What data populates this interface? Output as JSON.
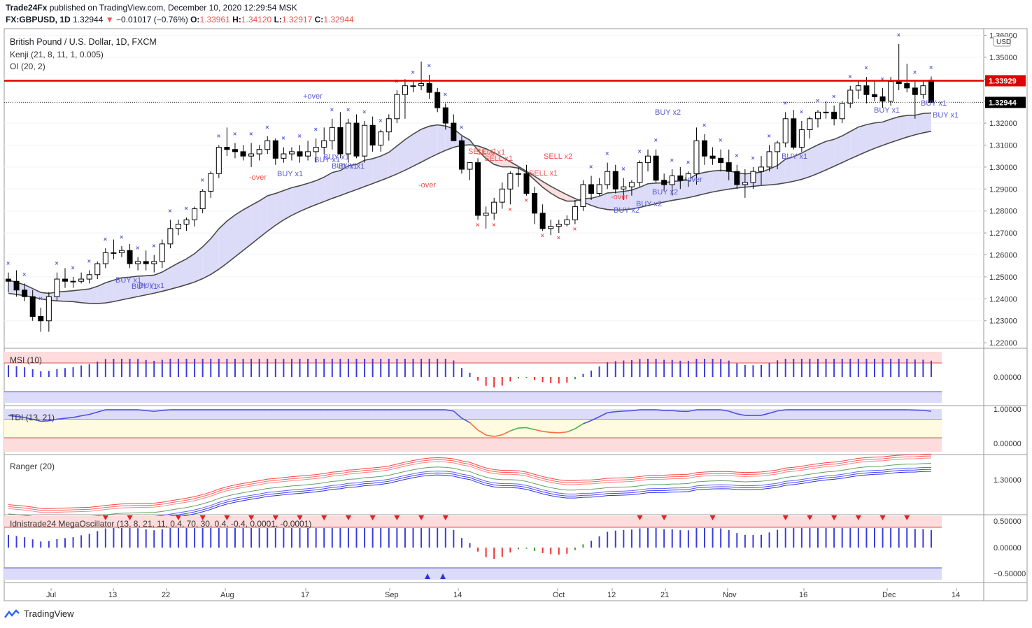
{
  "header": {
    "publisher": "Trade24Fx",
    "published_text": "published on TradingView.com, December 10, 2020 12:29:54 MSK",
    "symbol": "FX:GBPUSD, 1D",
    "last": "1.32944",
    "change": "−0.01017 (−0.76%)",
    "open_label": "O:",
    "open": "1.33961",
    "high_label": "H:",
    "high": "1.34120",
    "low_label": "L:",
    "low": "1.32917",
    "close_label": "C:",
    "close": "1.32944"
  },
  "main_legend": {
    "instrument": "British Pound / U.S. Dollar, 1D, FXCM",
    "ind1": "Kenji (21, 8, 11, 1, 0.005)",
    "ind2": "OI (20, 2)"
  },
  "pane_labels": {
    "msi": "MSI (10)",
    "tdi": "TDI (13, 21)",
    "ranger": "Ranger (20)",
    "mega": "Idnistrade24 MegaOscillator (13, 8, 21, 11, 0.4, 70, 30, 0.4, -0.4, 0.0001, -0.0001)"
  },
  "price_axis": {
    "currency": "USD",
    "ticks": [
      "1.36000",
      "1.35000",
      "1.34000",
      "1.33000",
      "1.32000",
      "1.31000",
      "1.30000",
      "1.29000",
      "1.28000",
      "1.27000",
      "1.26000",
      "1.25000",
      "1.24000",
      "1.23000",
      "1.22000"
    ],
    "resistance_label": "1.33929",
    "current_label": "1.32944"
  },
  "pane_axes": {
    "msi": [
      "0.00000"
    ],
    "tdi": [
      "1.00000",
      "0.00000"
    ],
    "ranger": [
      "1.30000"
    ],
    "mega": [
      "0.50000",
      "0.00000",
      "−0.50000"
    ]
  },
  "time_axis": [
    "Jul",
    "13",
    "22",
    "Aug",
    "17",
    "Sep",
    "14",
    "Oct",
    "12",
    "21",
    "Nov",
    "16",
    "Dec",
    "14"
  ],
  "signals": [
    {
      "text": "BUY x1",
      "color": "#5b5bd6"
    },
    {
      "text": "BUY x1",
      "color": "#5b5bd6"
    },
    {
      "text": "BUY x1",
      "color": "#5b5bd6"
    },
    {
      "text": "-over",
      "color": "#ef5350"
    },
    {
      "text": "BUY x1",
      "color": "#5b5bd6"
    },
    {
      "text": "+over",
      "color": "#5b5bd6"
    },
    {
      "text": "BUY x1",
      "color": "#5b5bd6"
    },
    {
      "text": "BUY x1",
      "color": "#5b5bd6"
    },
    {
      "text": "BUY x1",
      "color": "#5b5bd6"
    },
    {
      "text": "BUY x1",
      "color": "#5b5bd6"
    },
    {
      "text": "-over",
      "color": "#ef5350"
    },
    {
      "text": "SELL x1",
      "color": "#ef5350"
    },
    {
      "text": "SELL x1",
      "color": "#ef5350"
    },
    {
      "text": "SELL x1",
      "color": "#ef5350"
    },
    {
      "text": "SELL x1",
      "color": "#ef5350"
    },
    {
      "text": "SELL x2",
      "color": "#ef5350"
    },
    {
      "text": "-over",
      "color": "#ef5350"
    },
    {
      "text": "BUY x2",
      "color": "#5b5bd6"
    },
    {
      "text": "BUY x2",
      "color": "#5b5bd6"
    },
    {
      "text": "BUY x2",
      "color": "#5b5bd6"
    },
    {
      "text": "BUY x2",
      "color": "#5b5bd6"
    },
    {
      "text": "+over",
      "color": "#5b5bd6"
    },
    {
      "text": "BUY x1",
      "color": "#5b5bd6"
    },
    {
      "text": "BUY x1",
      "color": "#5b5bd6"
    },
    {
      "text": "BUY x1",
      "color": "#5b5bd6"
    },
    {
      "text": "BUY x1",
      "color": "#5b5bd6"
    },
    {
      "text": "-over",
      "color": "#ef5350"
    }
  ],
  "branding": {
    "footer": "TradingView"
  },
  "colors": {
    "up": "#ffffff",
    "down": "#000000",
    "resistance": "#e00000",
    "cloud_bull": "#dcdcf8",
    "cloud_bear": "#fbdede",
    "cross": "#5b5bd6",
    "cross_red": "#ef5350",
    "hist_blue": "#3c3cde",
    "hist_green": "#3a9a3a",
    "hist_red": "#ef3030"
  },
  "chart_data": {
    "type": "candlestick",
    "title": "British Pound / U.S. Dollar, 1D, FXCM",
    "ylim": [
      1.2175,
      1.363
    ],
    "resistance": 1.33929,
    "current": 1.32944,
    "candles": [
      [
        1.249,
        1.252,
        1.243,
        1.248
      ],
      [
        1.248,
        1.253,
        1.241,
        1.244
      ],
      [
        1.244,
        1.247,
        1.239,
        1.241
      ],
      [
        1.241,
        1.244,
        1.23,
        1.232
      ],
      [
        1.232,
        1.236,
        1.225,
        1.23
      ],
      [
        1.23,
        1.243,
        1.225,
        1.241
      ],
      [
        1.241,
        1.252,
        1.239,
        1.249
      ],
      [
        1.249,
        1.254,
        1.245,
        1.248
      ],
      [
        1.248,
        1.25,
        1.245,
        1.248
      ],
      [
        1.248,
        1.252,
        1.247,
        1.249
      ],
      [
        1.249,
        1.253,
        1.247,
        1.251
      ],
      [
        1.251,
        1.257,
        1.249,
        1.256
      ],
      [
        1.256,
        1.263,
        1.254,
        1.261
      ],
      [
        1.261,
        1.267,
        1.258,
        1.261
      ],
      [
        1.261,
        1.264,
        1.259,
        1.262
      ],
      [
        1.262,
        1.265,
        1.254,
        1.256
      ],
      [
        1.256,
        1.259,
        1.253,
        1.257
      ],
      [
        1.257,
        1.262,
        1.253,
        1.256
      ],
      [
        1.256,
        1.26,
        1.252,
        1.257
      ],
      [
        1.257,
        1.267,
        1.254,
        1.265
      ],
      [
        1.265,
        1.276,
        1.263,
        1.272
      ],
      [
        1.272,
        1.276,
        1.269,
        1.274
      ],
      [
        1.274,
        1.277,
        1.271,
        1.276
      ],
      [
        1.276,
        1.282,
        1.273,
        1.281
      ],
      [
        1.281,
        1.29,
        1.279,
        1.289
      ],
      [
        1.289,
        1.298,
        1.286,
        1.297
      ],
      [
        1.297,
        1.31,
        1.295,
        1.309
      ],
      [
        1.309,
        1.318,
        1.305,
        1.308
      ],
      [
        1.308,
        1.311,
        1.304,
        1.307
      ],
      [
        1.307,
        1.31,
        1.303,
        1.305
      ],
      [
        1.305,
        1.311,
        1.3,
        1.306
      ],
      [
        1.306,
        1.31,
        1.303,
        1.308
      ],
      [
        1.308,
        1.314,
        1.306,
        1.312
      ],
      [
        1.312,
        1.313,
        1.301,
        1.304
      ],
      [
        1.304,
        1.309,
        1.302,
        1.306
      ],
      [
        1.306,
        1.309,
        1.303,
        1.307
      ],
      [
        1.307,
        1.31,
        1.302,
        1.305
      ],
      [
        1.305,
        1.312,
        1.303,
        1.307
      ],
      [
        1.307,
        1.313,
        1.302,
        1.309
      ],
      [
        1.309,
        1.318,
        1.306,
        1.312
      ],
      [
        1.312,
        1.322,
        1.308,
        1.318
      ],
      [
        1.318,
        1.325,
        1.304,
        1.306
      ],
      [
        1.306,
        1.322,
        1.302,
        1.32
      ],
      [
        1.32,
        1.324,
        1.304,
        1.305
      ],
      [
        1.305,
        1.321,
        1.302,
        1.319
      ],
      [
        1.319,
        1.323,
        1.307,
        1.31
      ],
      [
        1.31,
        1.317,
        1.307,
        1.316
      ],
      [
        1.316,
        1.324,
        1.312,
        1.322
      ],
      [
        1.322,
        1.335,
        1.32,
        1.333
      ],
      [
        1.333,
        1.34,
        1.322,
        1.337
      ],
      [
        1.337,
        1.339,
        1.334,
        1.337
      ],
      [
        1.337,
        1.348,
        1.335,
        1.338
      ],
      [
        1.338,
        1.342,
        1.331,
        1.334
      ],
      [
        1.334,
        1.336,
        1.325,
        1.327
      ],
      [
        1.327,
        1.329,
        1.317,
        1.32
      ],
      [
        1.32,
        1.324,
        1.312,
        1.312
      ],
      [
        1.312,
        1.314,
        1.297,
        1.299
      ],
      [
        1.299,
        1.302,
        1.294,
        1.302
      ],
      [
        1.302,
        1.304,
        1.276,
        1.278
      ],
      [
        1.278,
        1.282,
        1.272,
        1.279
      ],
      [
        1.279,
        1.286,
        1.276,
        1.284
      ],
      [
        1.284,
        1.293,
        1.281,
        1.29
      ],
      [
        1.29,
        1.298,
        1.283,
        1.297
      ],
      [
        1.297,
        1.3,
        1.291,
        1.297
      ],
      [
        1.297,
        1.301,
        1.287,
        1.288
      ],
      [
        1.288,
        1.291,
        1.274,
        1.279
      ],
      [
        1.279,
        1.283,
        1.271,
        1.272
      ],
      [
        1.272,
        1.276,
        1.269,
        1.273
      ],
      [
        1.273,
        1.276,
        1.27,
        1.274
      ],
      [
        1.274,
        1.278,
        1.273,
        1.276
      ],
      [
        1.276,
        1.285,
        1.274,
        1.282
      ],
      [
        1.282,
        1.294,
        1.28,
        1.292
      ],
      [
        1.292,
        1.296,
        1.285,
        1.288
      ],
      [
        1.288,
        1.295,
        1.287,
        1.292
      ],
      [
        1.292,
        1.302,
        1.29,
        1.298
      ],
      [
        1.298,
        1.301,
        1.288,
        1.29
      ],
      [
        1.29,
        1.295,
        1.285,
        1.291
      ],
      [
        1.291,
        1.294,
        1.287,
        1.293
      ],
      [
        1.293,
        1.303,
        1.291,
        1.302
      ],
      [
        1.302,
        1.308,
        1.298,
        1.305
      ],
      [
        1.305,
        1.308,
        1.293,
        1.294
      ],
      [
        1.294,
        1.297,
        1.289,
        1.292
      ],
      [
        1.292,
        1.299,
        1.287,
        1.296
      ],
      [
        1.296,
        1.3,
        1.29,
        1.294
      ],
      [
        1.294,
        1.298,
        1.291,
        1.297
      ],
      [
        1.297,
        1.318,
        1.292,
        1.312
      ],
      [
        1.312,
        1.315,
        1.301,
        1.305
      ],
      [
        1.305,
        1.309,
        1.301,
        1.304
      ],
      [
        1.304,
        1.308,
        1.298,
        1.302
      ],
      [
        1.302,
        1.308,
        1.294,
        1.298
      ],
      [
        1.298,
        1.301,
        1.29,
        1.292
      ],
      [
        1.292,
        1.299,
        1.286,
        1.293
      ],
      [
        1.293,
        1.3,
        1.29,
        1.298
      ],
      [
        1.298,
        1.305,
        1.292,
        1.3
      ],
      [
        1.3,
        1.31,
        1.298,
        1.307
      ],
      [
        1.307,
        1.312,
        1.299,
        1.311
      ],
      [
        1.311,
        1.325,
        1.309,
        1.322
      ],
      [
        1.322,
        1.326,
        1.308,
        1.309
      ],
      [
        1.309,
        1.321,
        1.307,
        1.317
      ],
      [
        1.317,
        1.323,
        1.313,
        1.322
      ],
      [
        1.322,
        1.326,
        1.318,
        1.325
      ],
      [
        1.325,
        1.33,
        1.322,
        1.325
      ],
      [
        1.325,
        1.328,
        1.319,
        1.322
      ],
      [
        1.322,
        1.33,
        1.32,
        1.329
      ],
      [
        1.329,
        1.337,
        1.327,
        1.335
      ],
      [
        1.335,
        1.339,
        1.331,
        1.337
      ],
      [
        1.337,
        1.341,
        1.329,
        1.333
      ],
      [
        1.333,
        1.339,
        1.33,
        1.332
      ],
      [
        1.332,
        1.336,
        1.327,
        1.33
      ],
      [
        1.33,
        1.341,
        1.328,
        1.339
      ],
      [
        1.339,
        1.356,
        1.335,
        1.338
      ],
      [
        1.338,
        1.347,
        1.334,
        1.336
      ],
      [
        1.336,
        1.339,
        1.322,
        1.333
      ],
      [
        1.333,
        1.339,
        1.331,
        1.337
      ],
      [
        1.33961,
        1.3412,
        1.32917,
        1.32944
      ]
    ],
    "fast_line": [
      1.2485,
      1.2475,
      1.2464,
      1.2447,
      1.2429,
      1.2425,
      1.2431,
      1.2434,
      1.2437,
      1.2441,
      1.2445,
      1.2457,
      1.2473,
      1.2485,
      1.2496,
      1.2499,
      1.2503,
      1.2505,
      1.2508,
      1.2522,
      1.2543,
      1.2563,
      1.2582,
      1.2606,
      1.2637,
      1.2674,
      1.2719,
      1.2754,
      1.2782,
      1.2805,
      1.2826,
      1.2846,
      1.2869,
      1.288,
      1.2893,
      1.2906,
      1.2915,
      1.2926,
      1.2938,
      1.2954,
      1.2975,
      1.2984,
      1.3006,
      1.3012,
      1.3031,
      1.3038,
      1.305,
      1.3067,
      1.3096,
      1.3125,
      1.315,
      1.3172,
      1.3186,
      1.3192,
      1.3187,
      1.3174,
      1.3144,
      1.3123,
      1.3077,
      1.3038,
      1.3012,
      1.3001,
      1.3001,
      1.2995,
      1.2975,
      1.2942,
      1.2908,
      1.2881,
      1.2859,
      1.2845,
      1.2845,
      1.2856,
      1.2858,
      1.2867,
      1.2882,
      1.2885,
      1.2889,
      1.2895,
      1.2908,
      1.2924,
      1.2927,
      1.2928,
      1.2935,
      1.2937,
      1.2943,
      1.2967,
      1.2976,
      1.2982,
      1.2985,
      1.2983,
      1.2974,
      1.2969,
      1.2972,
      1.2977,
      1.2991,
      1.3007,
      1.3036,
      1.3047,
      1.3064,
      1.3083,
      1.3101,
      1.3117,
      1.3126,
      1.3142,
      1.3162,
      1.3182,
      1.3193,
      1.3201,
      1.3205,
      1.3218,
      1.3229,
      1.3235,
      1.3236,
      1.3244,
      1.3246
    ]
  }
}
